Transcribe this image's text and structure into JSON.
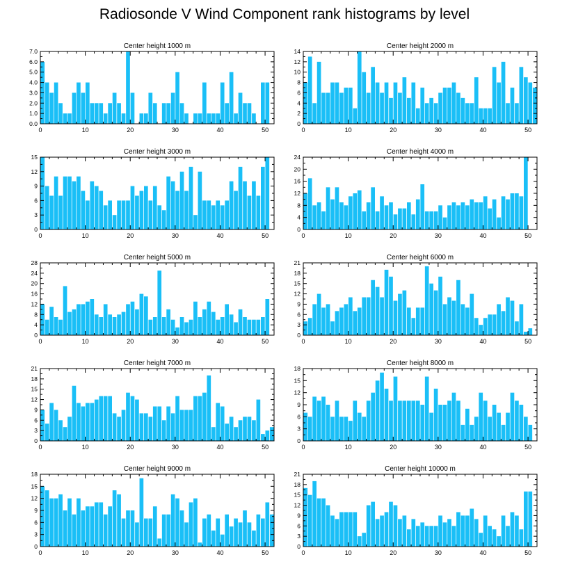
{
  "title": "Radiosonde V Wind Component rank histograms by level",
  "colors": {
    "bar": "#1ABFF7",
    "axis": "#000000"
  },
  "chart_data": [
    {
      "type": "bar",
      "title": "Center height 1000 m",
      "ylim": [
        0,
        7
      ],
      "yticks": [
        0,
        1,
        2,
        3,
        4,
        5,
        6,
        7
      ],
      "ytick_labels": [
        "0.0",
        "1.0",
        "2.0",
        "3.0",
        "4.0",
        "5.0",
        "6.0",
        "7.0"
      ],
      "xlim": [
        0,
        52
      ],
      "xticks": [
        0,
        10,
        20,
        30,
        40,
        50
      ],
      "xtick_labels": [
        "0",
        "10",
        "20",
        "30",
        "40",
        "50"
      ],
      "values": [
        6,
        4,
        3,
        4,
        2,
        1,
        1,
        3,
        4,
        3,
        4,
        2,
        2,
        2,
        1,
        2,
        3,
        2,
        1,
        7,
        3,
        0,
        1,
        1,
        3,
        2,
        0,
        2,
        2,
        3,
        5,
        2,
        1,
        0,
        1,
        1,
        4,
        1,
        1,
        1,
        4,
        2,
        5,
        1,
        3,
        2,
        2,
        1,
        0,
        4,
        4
      ]
    },
    {
      "type": "bar",
      "title": "Center height 2000 m",
      "ylim": [
        0,
        14
      ],
      "yticks": [
        0,
        2,
        4,
        6,
        8,
        10,
        12,
        14
      ],
      "ytick_labels": [
        "0",
        "2",
        "4",
        "6",
        "8",
        "10",
        "12",
        "14"
      ],
      "xlim": [
        0,
        52
      ],
      "xticks": [
        0,
        10,
        20,
        30,
        40,
        50
      ],
      "xtick_labels": [
        "0",
        "10",
        "20",
        "30",
        "40",
        "50"
      ],
      "values": [
        8,
        13,
        4,
        12,
        6,
        6,
        8,
        8,
        6,
        7,
        7,
        3,
        14,
        10,
        6,
        11,
        8,
        6,
        8,
        5,
        8,
        6,
        9,
        5,
        8,
        3,
        7,
        4,
        5,
        4,
        6,
        7,
        7,
        8,
        6,
        5,
        4,
        4,
        9,
        3,
        3,
        3,
        11,
        8,
        12,
        4,
        7,
        4,
        11,
        9,
        8,
        7
      ]
    },
    {
      "type": "bar",
      "title": "Center height 3000 m",
      "ylim": [
        0,
        15
      ],
      "yticks": [
        0,
        3,
        6,
        9,
        12,
        15
      ],
      "ytick_labels": [
        "0",
        "3",
        "6",
        "9",
        "12",
        "15"
      ],
      "xlim": [
        0,
        52
      ],
      "xticks": [
        0,
        10,
        20,
        30,
        40,
        50
      ],
      "xtick_labels": [
        "0",
        "10",
        "20",
        "30",
        "40",
        "50"
      ],
      "values": [
        15,
        9,
        7,
        11,
        7,
        11,
        11,
        10,
        11,
        8,
        6,
        10,
        9,
        8,
        5,
        6,
        3,
        6,
        6,
        6,
        9,
        7,
        8,
        9,
        6,
        9,
        5,
        4,
        11,
        10,
        8,
        12,
        8,
        13,
        3,
        12,
        6,
        6,
        5,
        6,
        5,
        6,
        10,
        8,
        13,
        10,
        7,
        10,
        7,
        13,
        15
      ]
    },
    {
      "type": "bar",
      "title": "Center height 4000 m",
      "ylim": [
        0,
        24
      ],
      "yticks": [
        0,
        4,
        8,
        12,
        16,
        20,
        24
      ],
      "ytick_labels": [
        "0",
        "4",
        "8",
        "12",
        "16",
        "20",
        "24"
      ],
      "xlim": [
        0,
        52
      ],
      "xticks": [
        0,
        10,
        20,
        30,
        40,
        50
      ],
      "xtick_labels": [
        "0",
        "10",
        "20",
        "30",
        "40",
        "50"
      ],
      "values": [
        12,
        17,
        8,
        9,
        6,
        14,
        10,
        14,
        9,
        8,
        11,
        12,
        13,
        6,
        9,
        14,
        6,
        11,
        8,
        9,
        5,
        7,
        7,
        9,
        5,
        10,
        15,
        6,
        6,
        6,
        8,
        4,
        8,
        9,
        8,
        9,
        8,
        10,
        9,
        9,
        11,
        7,
        10,
        4,
        11,
        10,
        12,
        12,
        11,
        24
      ]
    },
    {
      "type": "bar",
      "title": "Center height 5000 m",
      "ylim": [
        0,
        28
      ],
      "yticks": [
        0,
        4,
        8,
        12,
        16,
        20,
        24,
        28
      ],
      "ytick_labels": [
        "0",
        "4",
        "8",
        "12",
        "16",
        "20",
        "24",
        "28"
      ],
      "xlim": [
        0,
        52
      ],
      "xticks": [
        0,
        10,
        20,
        30,
        40,
        50
      ],
      "xtick_labels": [
        "0",
        "10",
        "20",
        "30",
        "40",
        "50"
      ],
      "values": [
        12,
        6,
        11,
        7,
        6,
        19,
        9,
        10,
        12,
        12,
        13,
        14,
        8,
        7,
        12,
        8,
        7,
        8,
        9,
        12,
        13,
        10,
        16,
        15,
        6,
        7,
        25,
        7,
        10,
        6,
        3,
        7,
        5,
        6,
        13,
        7,
        10,
        13,
        9,
        6,
        7,
        12,
        8,
        5,
        10,
        7,
        6,
        6,
        6,
        7,
        14
      ]
    },
    {
      "type": "bar",
      "title": "Center height 6000 m",
      "ylim": [
        0,
        21
      ],
      "yticks": [
        0,
        3,
        6,
        9,
        12,
        15,
        18,
        21
      ],
      "ytick_labels": [
        "0",
        "3",
        "6",
        "9",
        "12",
        "15",
        "18",
        "21"
      ],
      "xlim": [
        0,
        52
      ],
      "xticks": [
        0,
        10,
        20,
        30,
        40,
        50
      ],
      "xtick_labels": [
        "0",
        "10",
        "20",
        "30",
        "40",
        "50"
      ],
      "values": [
        4,
        5,
        9,
        12,
        8,
        9,
        4,
        7,
        8,
        9,
        11,
        7,
        8,
        11,
        11,
        16,
        14,
        11,
        19,
        17,
        10,
        12,
        13,
        8,
        5,
        8,
        8,
        20,
        15,
        13,
        17,
        9,
        11,
        10,
        16,
        9,
        8,
        12,
        5,
        3,
        5,
        6,
        6,
        9,
        7,
        11,
        10,
        4,
        9,
        1,
        2
      ]
    },
    {
      "type": "bar",
      "title": "Center height 7000 m",
      "ylim": [
        0,
        21
      ],
      "yticks": [
        0,
        3,
        6,
        9,
        12,
        15,
        18,
        21
      ],
      "ytick_labels": [
        "0",
        "3",
        "6",
        "9",
        "12",
        "15",
        "18",
        "21"
      ],
      "xlim": [
        0,
        52
      ],
      "xticks": [
        0,
        10,
        20,
        30,
        40,
        50
      ],
      "xtick_labels": [
        "0",
        "10",
        "20",
        "30",
        "40",
        "50"
      ],
      "values": [
        9,
        5,
        11,
        9,
        6,
        4,
        7,
        16,
        11,
        10,
        11,
        11,
        12,
        13,
        13,
        13,
        8,
        7,
        9,
        14,
        13,
        12,
        8,
        8,
        7,
        10,
        10,
        6,
        10,
        8,
        13,
        9,
        9,
        9,
        13,
        13,
        14,
        19,
        4,
        11,
        10,
        5,
        7,
        4,
        6,
        7,
        7,
        6,
        12,
        2,
        3,
        4
      ]
    },
    {
      "type": "bar",
      "title": "Center height 8000 m",
      "ylim": [
        0,
        18
      ],
      "yticks": [
        0,
        3,
        6,
        9,
        12,
        15,
        18
      ],
      "ytick_labels": [
        "0",
        "3",
        "6",
        "9",
        "12",
        "15",
        "18"
      ],
      "xlim": [
        0,
        52
      ],
      "xticks": [
        0,
        10,
        20,
        30,
        40,
        50
      ],
      "xtick_labels": [
        "0",
        "10",
        "20",
        "30",
        "40",
        "50"
      ],
      "values": [
        7,
        6,
        11,
        10,
        11,
        9,
        6,
        10,
        6,
        6,
        5,
        10,
        7,
        6,
        10,
        12,
        15,
        17,
        13,
        10,
        16,
        10,
        10,
        10,
        10,
        10,
        9,
        16,
        7,
        13,
        9,
        9,
        10,
        12,
        10,
        4,
        8,
        4,
        6,
        12,
        10,
        6,
        9,
        7,
        4,
        7,
        12,
        10,
        9,
        6,
        4
      ]
    },
    {
      "type": "bar",
      "title": "Center height 9000 m",
      "ylim": [
        0,
        18
      ],
      "yticks": [
        0,
        3,
        6,
        9,
        12,
        15,
        18
      ],
      "ytick_labels": [
        "0",
        "3",
        "6",
        "9",
        "12",
        "15",
        "18"
      ],
      "xlim": [
        0,
        52
      ],
      "xticks": [
        0,
        10,
        20,
        30,
        40,
        50
      ],
      "xtick_labels": [
        "0",
        "10",
        "20",
        "30",
        "40",
        "50"
      ],
      "values": [
        15,
        14,
        12,
        12,
        13,
        9,
        12,
        8,
        12,
        9,
        10,
        10,
        11,
        11,
        8,
        10,
        14,
        13,
        7,
        9,
        9,
        6,
        17,
        7,
        7,
        10,
        2,
        8,
        8,
        13,
        12,
        9,
        6,
        11,
        12,
        1,
        7,
        8,
        4,
        7,
        3,
        8,
        5,
        7,
        6,
        9,
        6,
        4,
        8,
        7,
        11,
        8
      ]
    },
    {
      "type": "bar",
      "title": "Center height 10000 m",
      "ylim": [
        0,
        21
      ],
      "yticks": [
        0,
        3,
        6,
        9,
        12,
        15,
        18,
        21
      ],
      "ytick_labels": [
        "0",
        "3",
        "6",
        "9",
        "12",
        "15",
        "18",
        "21"
      ],
      "xlim": [
        0,
        52
      ],
      "xticks": [
        0,
        10,
        20,
        30,
        40,
        50
      ],
      "xtick_labels": [
        "0",
        "10",
        "20",
        "30",
        "40",
        "50"
      ],
      "values": [
        17,
        15,
        19,
        14,
        14,
        12,
        9,
        8,
        10,
        10,
        10,
        10,
        3,
        4,
        12,
        13,
        8,
        9,
        10,
        13,
        12,
        8,
        9,
        5,
        8,
        6,
        7,
        6,
        6,
        6,
        9,
        7,
        8,
        6,
        10,
        9,
        9,
        11,
        8,
        4,
        9,
        6,
        5,
        3,
        9,
        6,
        10,
        9,
        5,
        16,
        16
      ]
    }
  ]
}
